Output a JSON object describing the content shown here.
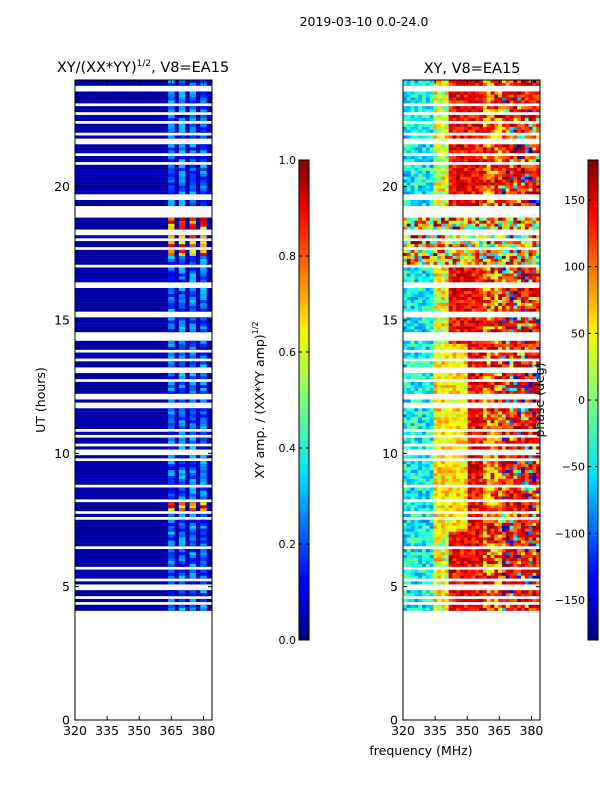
{
  "figure": {
    "suptitle": "2019-03-10 0.0-24.0",
    "shared_xlabel": "frequency (MHz)"
  },
  "chart_data": [
    {
      "type": "heatmap",
      "title_main": "XY/(XX*YY)",
      "title_exp": "1/2",
      "title_suffix": ", V8=EA15",
      "xlabel": "",
      "ylabel": "UT (hours)",
      "xlim": [
        320,
        384
      ],
      "ylim": [
        0,
        24
      ],
      "xticks": [
        320,
        335,
        350,
        365,
        380
      ],
      "yticks": [
        0,
        5,
        10,
        15,
        20
      ],
      "data_start_hour": 4.1,
      "data_end_hour": 24.0,
      "rfi_columns_mhz": [
        365,
        370,
        375,
        380
      ],
      "colorbar": {
        "label_main": "XY amp. / (XX*YY amp)",
        "label_exp": "1/2",
        "range": [
          0.0,
          1.0
        ],
        "ticks": [
          "0.0",
          "0.2",
          "0.4",
          "0.6",
          "0.8",
          "1.0"
        ],
        "colormap": "jet"
      }
    },
    {
      "type": "heatmap",
      "title": "XY, V8=EA15",
      "xlabel": "frequency (MHz)",
      "ylabel": "",
      "xlim": [
        320,
        384
      ],
      "ylim": [
        0,
        24
      ],
      "xticks": [
        320,
        335,
        350,
        365,
        380
      ],
      "yticks": [
        0,
        5,
        10,
        15,
        20
      ],
      "data_start_hour": 4.1,
      "data_end_hour": 24.0,
      "colorbar": {
        "label": "phase (deg)",
        "range": [
          -180,
          180
        ],
        "ticks": [
          "−150",
          "−100",
          "−50",
          "0",
          "50",
          "100",
          "150"
        ],
        "tick_values": [
          -150,
          -100,
          -50,
          0,
          50,
          100,
          150
        ],
        "colormap": "jet"
      }
    }
  ]
}
